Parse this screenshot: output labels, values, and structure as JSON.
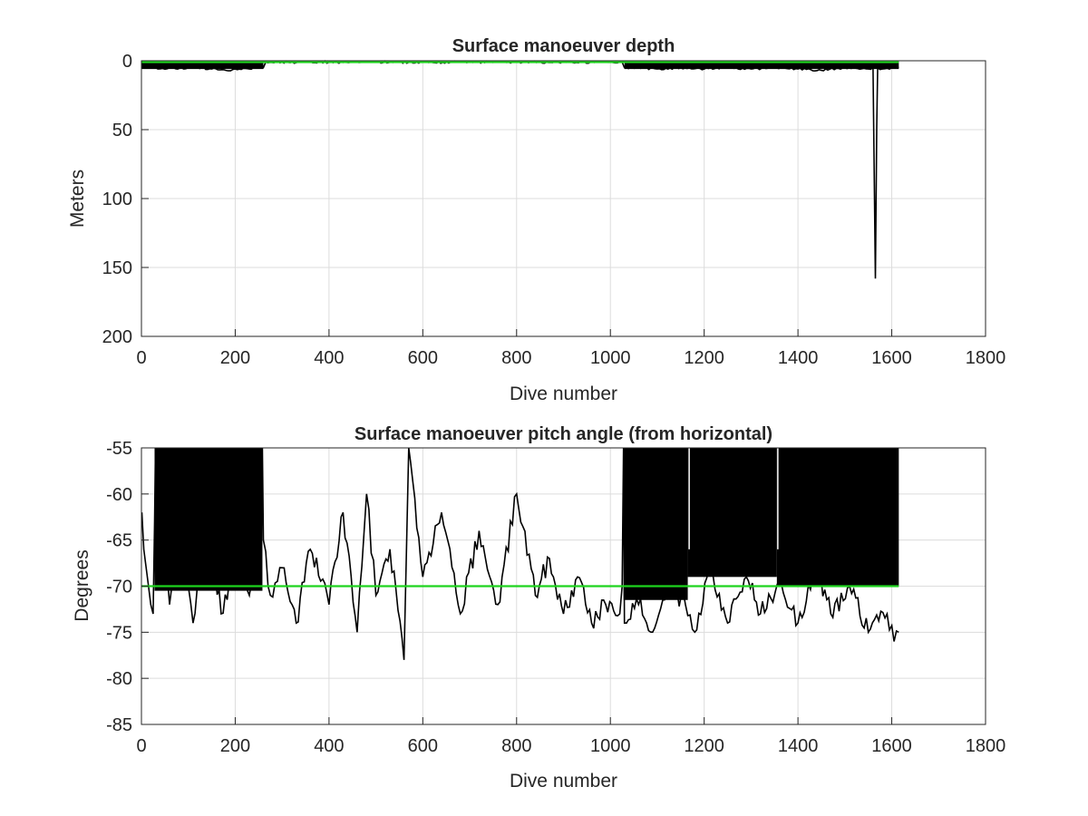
{
  "chart_data": [
    {
      "type": "line",
      "title": "Surface manoeuver depth",
      "xlabel": "Dive number",
      "ylabel": "Meters",
      "xlim": [
        0,
        1800
      ],
      "ylim": [
        0,
        200
      ],
      "y_reversed": true,
      "grid": true,
      "xticks": [
        "0",
        "200",
        "400",
        "600",
        "800",
        "1000",
        "1200",
        "1400",
        "1600",
        "1800"
      ],
      "yticks": [
        "0",
        "50",
        "100",
        "150",
        "200"
      ],
      "series": [
        {
          "color": "#000000",
          "x": [
            1,
            10,
            25,
            35,
            60,
            90,
            120,
            150,
            180,
            200,
            230,
            260,
            265,
            400,
            600,
            800,
            1000,
            1025,
            1030,
            1060,
            1100,
            1150,
            1200,
            1250,
            1300,
            1350,
            1400,
            1450,
            1500,
            1550,
            1560,
            1565,
            1568,
            1570,
            1580,
            1600,
            1615
          ],
          "y": [
            2,
            3,
            3,
            6,
            5,
            6,
            5,
            6,
            7,
            6,
            6,
            5,
            1,
            1,
            1,
            1,
            1,
            1,
            5,
            5,
            6,
            5,
            6,
            5,
            6,
            5,
            6,
            7,
            5,
            6,
            5,
            158,
            48,
            5,
            6,
            5,
            5
          ]
        },
        {
          "color": "#1ed41e",
          "x": [
            0,
            1615
          ],
          "y": [
            1,
            1
          ]
        }
      ]
    },
    {
      "type": "line",
      "title": "Surface manoeuver pitch angle (from horizontal)",
      "xlabel": "Dive number",
      "ylabel": "Degrees",
      "xlim": [
        0,
        1800
      ],
      "ylim": [
        -85,
        -55
      ],
      "grid": true,
      "xticks": [
        "0",
        "200",
        "400",
        "600",
        "800",
        "1000",
        "1200",
        "1400",
        "1600",
        "1800"
      ],
      "yticks": [
        "-55",
        "-60",
        "-65",
        "-70",
        "-75",
        "-80",
        "-85"
      ],
      "series": [
        {
          "color": "#000000",
          "x": [
            1,
            5,
            10,
            15,
            20,
            25,
            28,
            30,
            60,
            90,
            110,
            140,
            170,
            200,
            230,
            255,
            258,
            260,
            275,
            300,
            330,
            360,
            400,
            430,
            460,
            480,
            500,
            530,
            560,
            570,
            600,
            640,
            680,
            720,
            760,
            800,
            840,
            870,
            900,
            930,
            960,
            990,
            1020,
            1025,
            1028,
            1030,
            1060,
            1090,
            1120,
            1160,
            1180,
            1210,
            1250,
            1290,
            1320,
            1360,
            1400,
            1440,
            1470,
            1510,
            1550,
            1590,
            1605,
            1615
          ],
          "y": [
            -62,
            -66,
            -68,
            -70,
            -72,
            -73,
            -63,
            -55,
            -72,
            -66,
            -74,
            -62,
            -73,
            -68,
            -71,
            -66,
            -55,
            -65,
            -71,
            -68,
            -74,
            -66,
            -72,
            -62,
            -75,
            -60,
            -71,
            -66,
            -78,
            -55,
            -69,
            -62,
            -73,
            -64,
            -72,
            -60,
            -71,
            -67,
            -73,
            -69,
            -74,
            -72,
            -73,
            -70,
            -55,
            -74,
            -72,
            -75,
            -70,
            -72,
            -75,
            -68,
            -74,
            -69,
            -73,
            -70,
            -74,
            -68,
            -73,
            -70,
            -75,
            -73,
            -76,
            -75
          ]
        },
        {
          "color": "#1ed41e",
          "x": [
            0,
            1615
          ],
          "y": [
            -70,
            -70
          ]
        }
      ]
    }
  ]
}
